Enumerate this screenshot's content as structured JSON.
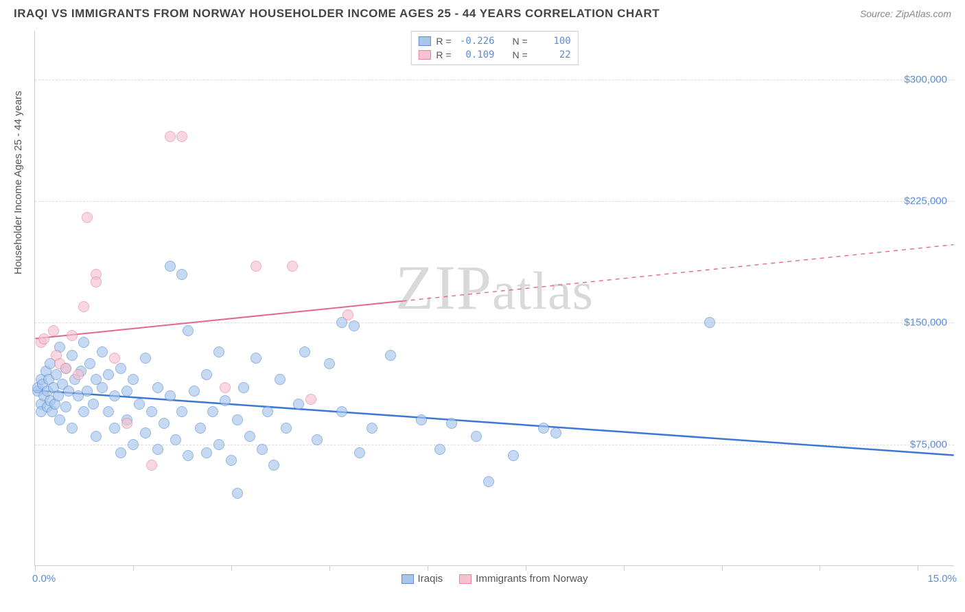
{
  "title": "IRAQI VS IMMIGRANTS FROM NORWAY HOUSEHOLDER INCOME AGES 25 - 44 YEARS CORRELATION CHART",
  "source_label": "Source: ZipAtlas.com",
  "ylabel": "Householder Income Ages 25 - 44 years",
  "watermark": "ZIPatlas",
  "chart": {
    "type": "scatter",
    "xlim": [
      0,
      15
    ],
    "ylim": [
      0,
      330000
    ],
    "x_tick_positions": [
      0,
      1.6,
      3.2,
      4.8,
      6.4,
      8.0,
      9.6,
      11.2,
      12.8,
      14.4
    ],
    "x_start_label": "0.0%",
    "x_end_label": "15.0%",
    "y_gridlines": [
      75000,
      150000,
      225000,
      300000
    ],
    "y_tick_labels": [
      "$75,000",
      "$150,000",
      "$225,000",
      "$300,000"
    ],
    "background_color": "#ffffff",
    "grid_color": "#dddddd",
    "axis_color": "#cccccc",
    "series": [
      {
        "name": "Iraqis",
        "marker_fill": "#a8c6ec",
        "marker_stroke": "#5b8dd6",
        "marker_opacity": 0.65,
        "marker_radius": 8,
        "trend_color": "#3b78d4",
        "trend_width": 2.5,
        "trend_solid_end_x": 15.0,
        "r": "-0.226",
        "n": "100",
        "trend": {
          "x1": 0,
          "y1": 108000,
          "x2": 15,
          "y2": 68000
        },
        "points": [
          [
            0.05,
            108000
          ],
          [
            0.05,
            110000
          ],
          [
            0.1,
            100000
          ],
          [
            0.1,
            115000
          ],
          [
            0.1,
            95000
          ],
          [
            0.12,
            112000
          ],
          [
            0.15,
            105000
          ],
          [
            0.18,
            120000
          ],
          [
            0.2,
            98000
          ],
          [
            0.2,
            108000
          ],
          [
            0.22,
            115000
          ],
          [
            0.25,
            102000
          ],
          [
            0.25,
            125000
          ],
          [
            0.28,
            95000
          ],
          [
            0.3,
            110000
          ],
          [
            0.32,
            100000
          ],
          [
            0.35,
            118000
          ],
          [
            0.38,
            105000
          ],
          [
            0.4,
            135000
          ],
          [
            0.4,
            90000
          ],
          [
            0.45,
            112000
          ],
          [
            0.5,
            122000
          ],
          [
            0.5,
            98000
          ],
          [
            0.55,
            108000
          ],
          [
            0.6,
            130000
          ],
          [
            0.6,
            85000
          ],
          [
            0.65,
            115000
          ],
          [
            0.7,
            105000
          ],
          [
            0.75,
            120000
          ],
          [
            0.8,
            95000
          ],
          [
            0.8,
            138000
          ],
          [
            0.85,
            108000
          ],
          [
            0.9,
            125000
          ],
          [
            0.95,
            100000
          ],
          [
            1.0,
            115000
          ],
          [
            1.0,
            80000
          ],
          [
            1.1,
            110000
          ],
          [
            1.1,
            132000
          ],
          [
            1.2,
            95000
          ],
          [
            1.2,
            118000
          ],
          [
            1.3,
            105000
          ],
          [
            1.3,
            85000
          ],
          [
            1.4,
            122000
          ],
          [
            1.4,
            70000
          ],
          [
            1.5,
            108000
          ],
          [
            1.5,
            90000
          ],
          [
            1.6,
            115000
          ],
          [
            1.6,
            75000
          ],
          [
            1.7,
            100000
          ],
          [
            1.8,
            82000
          ],
          [
            1.8,
            128000
          ],
          [
            1.9,
            95000
          ],
          [
            2.0,
            110000
          ],
          [
            2.0,
            72000
          ],
          [
            2.1,
            88000
          ],
          [
            2.2,
            105000
          ],
          [
            2.2,
            185000
          ],
          [
            2.3,
            78000
          ],
          [
            2.4,
            95000
          ],
          [
            2.4,
            180000
          ],
          [
            2.5,
            145000
          ],
          [
            2.5,
            68000
          ],
          [
            2.6,
            108000
          ],
          [
            2.7,
            85000
          ],
          [
            2.8,
            118000
          ],
          [
            2.8,
            70000
          ],
          [
            2.9,
            95000
          ],
          [
            3.0,
            132000
          ],
          [
            3.0,
            75000
          ],
          [
            3.1,
            102000
          ],
          [
            3.2,
            65000
          ],
          [
            3.3,
            90000
          ],
          [
            3.3,
            45000
          ],
          [
            3.4,
            110000
          ],
          [
            3.5,
            80000
          ],
          [
            3.6,
            128000
          ],
          [
            3.7,
            72000
          ],
          [
            3.8,
            95000
          ],
          [
            3.9,
            62000
          ],
          [
            4.0,
            115000
          ],
          [
            4.1,
            85000
          ],
          [
            4.3,
            100000
          ],
          [
            4.4,
            132000
          ],
          [
            4.6,
            78000
          ],
          [
            4.8,
            125000
          ],
          [
            5.0,
            95000
          ],
          [
            5.0,
            150000
          ],
          [
            5.2,
            148000
          ],
          [
            5.3,
            70000
          ],
          [
            5.5,
            85000
          ],
          [
            5.8,
            130000
          ],
          [
            6.3,
            90000
          ],
          [
            6.6,
            72000
          ],
          [
            6.8,
            88000
          ],
          [
            7.2,
            80000
          ],
          [
            7.4,
            52000
          ],
          [
            7.8,
            68000
          ],
          [
            8.3,
            85000
          ],
          [
            8.5,
            82000
          ],
          [
            11.0,
            150000
          ]
        ]
      },
      {
        "name": "Immigrants from Norway",
        "marker_fill": "#f5c2d0",
        "marker_stroke": "#e583a3",
        "marker_opacity": 0.65,
        "marker_radius": 8,
        "trend_color": "#e06890",
        "trend_width": 2,
        "trend_solid_end_x": 6.0,
        "r": "0.109",
        "n": "22",
        "trend": {
          "x1": 0,
          "y1": 140000,
          "x2": 15,
          "y2": 198000
        },
        "points": [
          [
            0.1,
            138000
          ],
          [
            0.15,
            140000
          ],
          [
            0.3,
            145000
          ],
          [
            0.35,
            130000
          ],
          [
            0.4,
            125000
          ],
          [
            0.5,
            122000
          ],
          [
            0.6,
            142000
          ],
          [
            0.7,
            118000
          ],
          [
            0.8,
            160000
          ],
          [
            0.85,
            215000
          ],
          [
            1.0,
            180000
          ],
          [
            1.0,
            175000
          ],
          [
            1.3,
            128000
          ],
          [
            1.5,
            88000
          ],
          [
            1.9,
            62000
          ],
          [
            2.2,
            265000
          ],
          [
            2.4,
            265000
          ],
          [
            3.1,
            110000
          ],
          [
            3.6,
            185000
          ],
          [
            4.2,
            185000
          ],
          [
            4.5,
            103000
          ],
          [
            5.1,
            155000
          ]
        ]
      }
    ]
  },
  "legend_top": {
    "r_label": "R =",
    "n_label": "N ="
  },
  "legend_bottom": {
    "items": [
      "Iraqis",
      "Immigrants from Norway"
    ]
  }
}
